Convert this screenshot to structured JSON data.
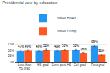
{
  "chart_data": {
    "type": "bar",
    "title": "Presidential vote by education",
    "categories": [
      "Less than\nHS grad",
      "HS grad",
      "Some post-HS",
      "Coll grad",
      "Post grad"
    ],
    "series": [
      {
        "name": "Voted Biden",
        "color": "#2196F3",
        "values": [
          47,
          48,
          49,
          52,
          69
        ],
        "value_labels": [
          "47%",
          "48%",
          "49%",
          "52%",
          "69%"
        ],
        "errors": [
          4,
          4,
          3,
          3,
          3
        ]
      },
      {
        "name": "Voted Trump",
        "color": "#FF5722",
        "values": [
          49,
          52,
          51,
          38,
          31
        ],
        "value_labels": [
          "49%",
          "52%",
          "51%",
          "38%",
          "31%"
        ],
        "errors": [
          4,
          4,
          3,
          3,
          3
        ]
      }
    ],
    "ylim": [
      0,
      80
    ],
    "yticks": [
      {
        "value": 0,
        "label": "0%"
      },
      {
        "value": 25,
        "label": "25%"
      },
      {
        "value": 50,
        "label": "50%"
      },
      {
        "value": 75,
        "label": "75%"
      }
    ],
    "grid": true,
    "legend": "top",
    "data_labels": true
  }
}
